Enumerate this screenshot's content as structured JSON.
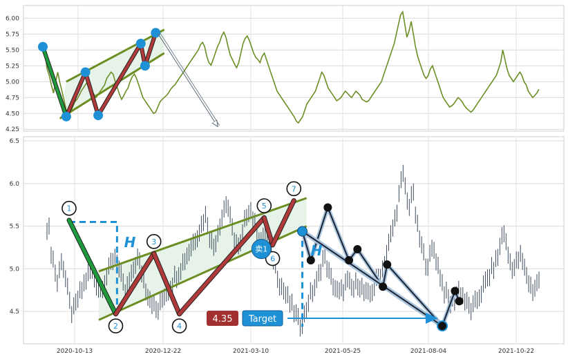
{
  "chart_data": [
    {
      "type": "line",
      "panel": "top",
      "ylim": [
        4.22,
        6.2
      ],
      "yticks": [
        "4.25",
        "4.50",
        "4.75",
        "5.00",
        "5.25",
        "5.50",
        "5.75",
        "6.00"
      ],
      "ytick_values": [
        4.25,
        4.5,
        4.75,
        5.0,
        5.25,
        5.5,
        5.75,
        6.0
      ],
      "grid": true,
      "series": [
        {
          "values": [
            5.5,
            5.45,
            5.2,
            5.1,
            4.95,
            4.82,
            5.0,
            5.15,
            4.98,
            4.85,
            4.7,
            4.55,
            4.48,
            4.52,
            4.6,
            4.68,
            4.72,
            4.78,
            4.85,
            4.9,
            4.95,
            5.0,
            4.92,
            4.85,
            4.8,
            4.75,
            4.8,
            4.85,
            4.9,
            4.95,
            5.05,
            5.1,
            5.15,
            5.12,
            5.0,
            4.9,
            4.8,
            4.72,
            4.78,
            4.85,
            4.9,
            5.0,
            5.08,
            5.12,
            5.05,
            4.95,
            4.85,
            4.75,
            4.7,
            4.65,
            4.6,
            4.55,
            4.5,
            4.52,
            4.6,
            4.68,
            4.72,
            4.75,
            4.78,
            4.82,
            4.88,
            4.92,
            4.95,
            5.0,
            5.05,
            5.1,
            5.15,
            5.2,
            5.25,
            5.3,
            5.35,
            5.4,
            5.45,
            5.5,
            5.58,
            5.62,
            5.55,
            5.4,
            5.3,
            5.26,
            5.35,
            5.45,
            5.55,
            5.62,
            5.72,
            5.78,
            5.7,
            5.55,
            5.42,
            5.35,
            5.28,
            5.22,
            5.3,
            5.45,
            5.6,
            5.68,
            5.72,
            5.65,
            5.55,
            5.45,
            5.38,
            5.35,
            5.3,
            5.4,
            5.45,
            5.35,
            5.25,
            5.15,
            5.05,
            4.95,
            4.85,
            4.8,
            4.75,
            4.7,
            4.65,
            4.6,
            4.55,
            4.5,
            4.45,
            4.38,
            4.35,
            4.4,
            4.45,
            4.55,
            4.65,
            4.7,
            4.75,
            4.8,
            4.85,
            4.95,
            5.05,
            5.15,
            5.1,
            5.0,
            4.9,
            4.85,
            4.8,
            4.75,
            4.7,
            4.72,
            4.75,
            4.8,
            4.85,
            4.82,
            4.78,
            4.75,
            4.8,
            4.85,
            4.82,
            4.78,
            4.72,
            4.7,
            4.68,
            4.7,
            4.75,
            4.8,
            4.85,
            4.9,
            4.95,
            5.0,
            5.1,
            5.2,
            5.3,
            5.4,
            5.5,
            5.6,
            5.75,
            5.9,
            6.05,
            6.1,
            5.9,
            5.7,
            5.8,
            5.95,
            5.75,
            5.55,
            5.4,
            5.3,
            5.2,
            5.1,
            5.05,
            5.1,
            5.2,
            5.25,
            5.15,
            5.05,
            4.95,
            4.85,
            4.75,
            4.7,
            4.65,
            4.6,
            4.62,
            4.65,
            4.7,
            4.75,
            4.72,
            4.68,
            4.62,
            4.58,
            4.55,
            4.52,
            4.55,
            4.6,
            4.65,
            4.7,
            4.75,
            4.8,
            4.85,
            4.9,
            4.95,
            5.0,
            5.05,
            5.1,
            5.2,
            5.3,
            5.5,
            5.35,
            5.2,
            5.1,
            5.05,
            5.0,
            5.05,
            5.1,
            5.15,
            5.1,
            5.0,
            4.95,
            4.85,
            4.8,
            4.75,
            4.78,
            4.82,
            4.88
          ]
        }
      ],
      "pattern_points": [
        {
          "i": 0,
          "y": 5.55
        },
        {
          "i": 11,
          "y": 4.45
        },
        {
          "i": 20,
          "y": 5.15
        },
        {
          "i": 26,
          "y": 4.47
        },
        {
          "i": 46,
          "y": 5.6
        },
        {
          "i": 48,
          "y": 5.25
        },
        {
          "i": 53,
          "y": 5.77
        }
      ],
      "channel": {
        "upper": [
          {
            "i": 11,
            "y": 5.0
          },
          {
            "i": 57,
            "y": 5.82
          }
        ],
        "lower": [
          {
            "i": 8,
            "y": 4.42
          },
          {
            "i": 57,
            "y": 5.45
          }
        ]
      },
      "projection_arrow": [
        {
          "i": 54,
          "y": 5.76
        },
        {
          "i": 82,
          "y": 4.3
        }
      ],
      "colors": {
        "line": "#6b8e23",
        "channel": "#6b8e23",
        "fill": "#e4f2e6",
        "leg1": "#1f9a3a",
        "legs": "#b03a3a",
        "marker": "#1e90d6",
        "arrow": "#5a6a7a"
      }
    },
    {
      "type": "candlestick",
      "panel": "bottom",
      "ylim": [
        4.12,
        6.55
      ],
      "yticks": [
        "4.5",
        "5.0",
        "5.5",
        "6.0",
        "6.5"
      ],
      "ytick_values": [
        4.5,
        5.0,
        5.5,
        6.0,
        6.5
      ],
      "xticks": [
        "2020-10-13",
        "2020-12-22",
        "2021-03-10",
        "2021-05-25",
        "2021-08-04",
        "2021-10-22"
      ],
      "grid": true,
      "pattern_points": [
        {
          "label": "1",
          "i": 0,
          "y": 5.57,
          "label_y": 5.71
        },
        {
          "label": "2",
          "i": 11,
          "y": 4.47,
          "label_y": 4.33
        },
        {
          "label": "3",
          "i": 20,
          "y": 5.18,
          "label_y": 5.32
        },
        {
          "label": "4",
          "i": 26,
          "y": 4.47,
          "label_y": 4.33
        },
        {
          "label": "5",
          "i": 46,
          "y": 5.6,
          "label_y": 5.74
        },
        {
          "label": "6",
          "i": 48,
          "y": 5.28,
          "label_y": 5.12
        },
        {
          "label": "7",
          "i": 53,
          "y": 5.8,
          "label_y": 5.94
        }
      ],
      "channel": {
        "upper": [
          {
            "i": 7,
            "y": 4.97
          },
          {
            "i": 56,
            "y": 5.83
          }
        ],
        "lower": [
          {
            "i": 7,
            "y": 4.4
          },
          {
            "i": 56,
            "y": 5.5
          }
        ]
      },
      "height_box": {
        "x0": 0,
        "x1": 10,
        "top": 5.55,
        "bottom": 4.47
      },
      "height_line_right": {
        "i": 55,
        "top": 5.45,
        "bottom": 4.32
      },
      "H_label": "H",
      "sell_label": "卖1",
      "sell_point": {
        "i": 46,
        "y": 5.2
      },
      "price_label": "4.35",
      "target_label": "Target",
      "target_arrow": {
        "y": 4.35,
        "i_end": 88
      },
      "breakout_point": {
        "i": 55,
        "y": 5.44
      },
      "path_points": [
        {
          "i": 55,
          "y": 5.44
        },
        {
          "i": 57,
          "y": 5.1
        },
        {
          "i": 61,
          "y": 5.72
        },
        {
          "i": 66,
          "y": 5.1
        },
        {
          "i": 68,
          "y": 5.23
        },
        {
          "i": 74,
          "y": 4.79
        },
        {
          "i": 75,
          "y": 5.05
        },
        {
          "i": 88,
          "y": 4.33
        },
        {
          "i": 91,
          "y": 4.74
        },
        {
          "i": 92,
          "y": 4.62
        }
      ],
      "target_end": {
        "i": 88,
        "y": 4.33
      },
      "colors": {
        "candle": "#3c4a5c",
        "channel": "#6b8e23",
        "fill": "#e4f2e6",
        "leg1": "#1f9a3a",
        "legs": "#b03a3a",
        "height": "#1e90d6",
        "price_box": "#a33030",
        "target_box": "#1e90d6",
        "path": "#1b2333",
        "path_halo": "#a9c4dc",
        "breakout": "#1e90d6"
      }
    }
  ]
}
